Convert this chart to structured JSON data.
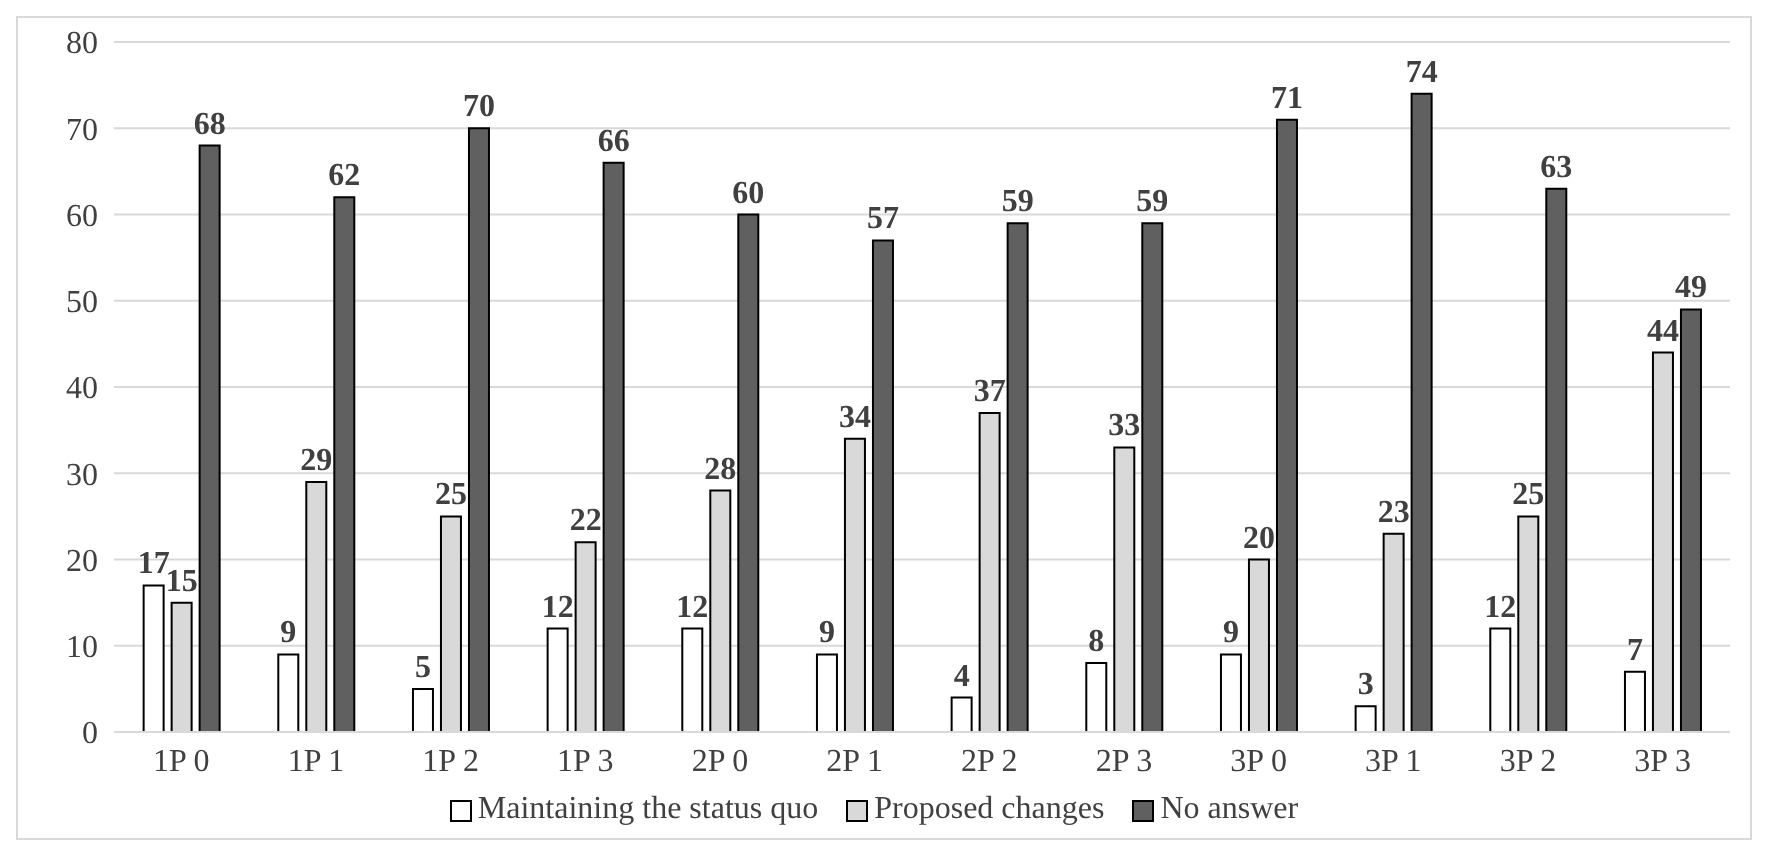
{
  "chart_data": {
    "type": "bar",
    "categories": [
      "1P 0",
      "1P 1",
      "1P 2",
      "1P 3",
      "2P 0",
      "2P 1",
      "2P 2",
      "2P 3",
      "3P 0",
      "3P 1",
      "3P 2",
      "3P 3"
    ],
    "series": [
      {
        "name": "Maintaining the status quo",
        "color": "#ffffff",
        "values": [
          17,
          9,
          5,
          12,
          12,
          9,
          4,
          8,
          9,
          3,
          12,
          7
        ]
      },
      {
        "name": "Proposed changes",
        "color": "#d9d9d9",
        "values": [
          15,
          29,
          25,
          22,
          28,
          34,
          37,
          33,
          20,
          23,
          25,
          44
        ]
      },
      {
        "name": "No answer",
        "color": "#606060",
        "values": [
          68,
          62,
          70,
          66,
          60,
          57,
          59,
          59,
          71,
          74,
          63,
          49
        ]
      }
    ],
    "ylim": [
      0,
      80
    ],
    "yticks": [
      0,
      10,
      20,
      30,
      40,
      50,
      60,
      70,
      80
    ],
    "grid": "y",
    "legend": "bottom",
    "data_labels": true
  }
}
